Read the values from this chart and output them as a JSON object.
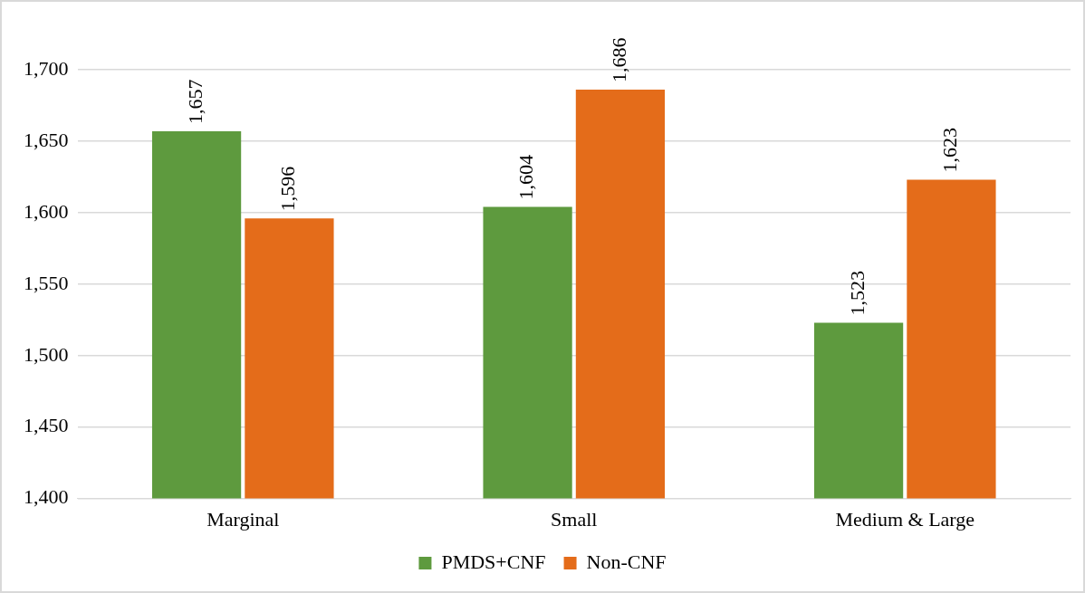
{
  "chart_data": {
    "type": "bar",
    "categories": [
      "Marginal",
      "Small",
      "Medium & Large"
    ],
    "series": [
      {
        "name": "PMDS+CNF",
        "color": "#5e9a3e",
        "values": [
          1657,
          1604,
          1523
        ],
        "value_labels": [
          "1,657",
          "1,604",
          "1,523"
        ]
      },
      {
        "name": "Non-CNF",
        "color": "#e46c1a",
        "values": [
          1596,
          1686,
          1623
        ],
        "value_labels": [
          "1,596",
          "1,686",
          "1,623"
        ]
      }
    ],
    "ylim": [
      1400,
      1700
    ],
    "yticks": [
      {
        "value": 1400,
        "label": "1,400"
      },
      {
        "value": 1450,
        "label": "1,450"
      },
      {
        "value": 1500,
        "label": "1,500"
      },
      {
        "value": 1550,
        "label": "1,550"
      },
      {
        "value": 1600,
        "label": "1,600"
      },
      {
        "value": 1650,
        "label": "1,650"
      },
      {
        "value": 1700,
        "label": "1,700"
      }
    ],
    "grid": "y",
    "legend": "bottom"
  }
}
